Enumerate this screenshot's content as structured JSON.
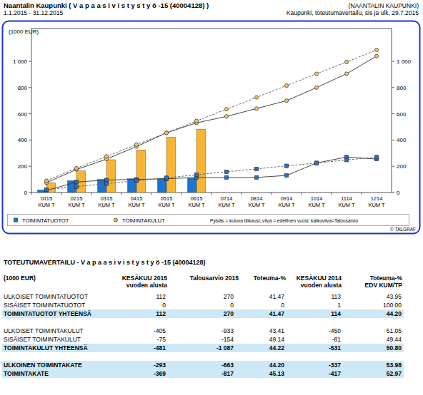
{
  "header": {
    "title": "Naantalin Kaupunki ( V a p a a s i v i s t y s t y ö -15 (40004128) )",
    "period": "1.1.2015 - 31.12.2015",
    "organisation": "(NAANTALIN KAUPUNKI)",
    "report": "Kaupunki, toteutumavertailu, sis ja ulk, 29.7.2015"
  },
  "chart_data": {
    "type": "bar",
    "ylabel": "(1000 EUR)",
    "categories": [
      "0115 KUM T",
      "0215 KUM T",
      "0315 KUM T",
      "0415 KUM T",
      "0515 KUM T",
      "0615 KUM T",
      "0714 KUM T",
      "0814 KUM T",
      "0914 KUM T",
      "1014 KUM T",
      "1114 KUM T",
      "1214 KUM T"
    ],
    "ylim": [
      0,
      1250
    ],
    "yticks": [
      0,
      200,
      400,
      600,
      800,
      {
        "value": 1000,
        "label": "1 000"
      }
    ],
    "grid": false,
    "legend": "bottom",
    "annotations": [
      "Pylväs = kuluva tilikausi; viiva = edellinen vuosi; katkoviiva=Talousarvio",
      "© TALGRAF"
    ],
    "series": [
      {
        "name": "TOIMINTATUOTOT",
        "type": "bar",
        "marker": "square",
        "color": "#1b74d0",
        "values": [
          20,
          90,
          100,
          105,
          108,
          112,
          null,
          null,
          null,
          null,
          null,
          null
        ]
      },
      {
        "name": "TOIMINTAKULUT",
        "type": "bar",
        "marker": "circle",
        "color": "#f6b534",
        "values": [
          75,
          165,
          250,
          325,
          420,
          481,
          null,
          null,
          null,
          null,
          null,
          null
        ]
      },
      {
        "type": "line",
        "line_style": "solid",
        "marker": "square",
        "color": "#1b74d0",
        "values": [
          15,
          80,
          95,
          100,
          105,
          114,
          115,
          115,
          130,
          225,
          270,
          255
        ]
      },
      {
        "type": "line",
        "line_style": "dashed",
        "marker": "square",
        "color": "#1b74d0",
        "values": [
          22,
          45,
          68,
          90,
          112,
          135,
          158,
          180,
          203,
          225,
          248,
          270
        ]
      },
      {
        "type": "line",
        "line_style": "solid",
        "marker": "circle",
        "color": "#f4c45e",
        "values": [
          75,
          175,
          255,
          350,
          455,
          531,
          580,
          640,
          700,
          800,
          905,
          1040
        ]
      },
      {
        "type": "line",
        "line_style": "dashed",
        "marker": "circle",
        "color": "#f4c45e",
        "values": [
          90,
          185,
          275,
          365,
          455,
          545,
          635,
          725,
          815,
          905,
          995,
          1087
        ]
      }
    ]
  },
  "table": {
    "title": "TOTEUTUMAVERTAILU - V a p a a s i v i s t y s t y ö -15 (40004128)",
    "header": [
      [
        "(1000 EUR)"
      ],
      [
        "KESÄKUU 2015",
        "vuoden alusta"
      ],
      [
        "Talousarvio 2015"
      ],
      [
        "Toteuma-%"
      ],
      [
        "KESÄKUU 2014",
        "vuoden alusta"
      ],
      [
        "Toteuma-%",
        "EDV KUM/TP"
      ]
    ],
    "groups": [
      [
        {
          "cells": [
            "ULKOISET TOIMINTATUOTOT",
            "112",
            "270",
            "41.47",
            "113",
            "43.95"
          ],
          "total": false
        },
        {
          "cells": [
            "SISÄISET TOIMINTATUOTOT",
            "0",
            "0",
            "0",
            "1",
            "100.00"
          ],
          "total": false
        },
        {
          "cells": [
            "TOIMINTATUOTOT YHTEENSÄ",
            "112",
            "270",
            "41.47",
            "114",
            "44.20"
          ],
          "total": true
        }
      ],
      [
        {
          "cells": [
            "ULKOISET TOIMINTAKULUT",
            "-405",
            "-933",
            "43.41",
            "-450",
            "51.05"
          ],
          "total": false
        },
        {
          "cells": [
            "SISÄISET TOIMINTAKULUT",
            "-75",
            "-154",
            "49.14",
            "-81",
            "49.44"
          ],
          "total": false
        },
        {
          "cells": [
            "TOIMINTAKULUT YHTEENSÄ",
            "-481",
            "-1 087",
            "44.22",
            "-531",
            "50.80"
          ],
          "total": true
        }
      ],
      [
        {
          "cells": [
            "ULKOINEN TOIMINTAKATE",
            "-293",
            "-663",
            "44.20",
            "-337",
            "53.98"
          ],
          "total": true
        },
        {
          "cells": [
            "TOIMINTAKATE",
            "-369",
            "-817",
            "45.13",
            "-417",
            "52.97"
          ],
          "total": true
        }
      ]
    ]
  }
}
